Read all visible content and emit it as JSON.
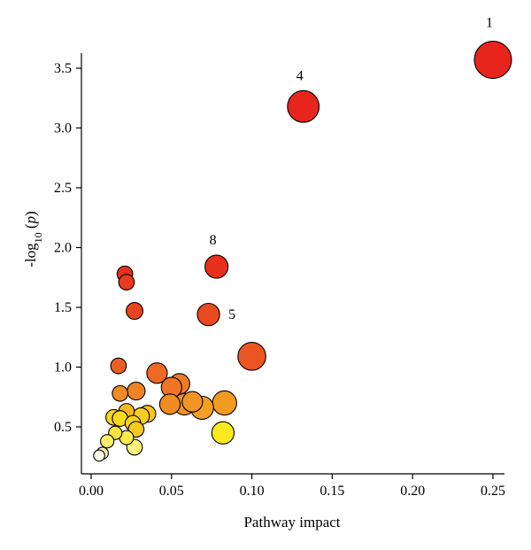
{
  "chart_data": {
    "type": "scatter",
    "xlabel": "Pathway impact",
    "ylabel_main": "-log",
    "ylabel_sub": "10",
    "ylabel_var": "p",
    "xlim": [
      0,
      0.25
    ],
    "ylim": [
      0.2,
      3.65
    ],
    "xticks": [
      "0.00",
      "0.05",
      "0.10",
      "0.15",
      "0.20",
      "0.25"
    ],
    "yticks": [
      "0.5",
      "1.0",
      "1.5",
      "2.0",
      "2.5",
      "3.0",
      "3.5"
    ],
    "grid": false,
    "points": [
      {
        "x": 0.25,
        "y": 3.57,
        "size": 1.0,
        "color": "#e8251d",
        "label": "1"
      },
      {
        "x": 0.132,
        "y": 3.18,
        "size": 0.85,
        "color": "#e8251d",
        "label": "4"
      },
      {
        "x": 0.078,
        "y": 1.84,
        "size": 0.62,
        "color": "#e8301d",
        "label": "8"
      },
      {
        "x": 0.073,
        "y": 1.44,
        "size": 0.6,
        "color": "#ea4a20",
        "label": "5"
      },
      {
        "x": 0.021,
        "y": 1.78,
        "size": 0.42,
        "color": "#e8301d"
      },
      {
        "x": 0.022,
        "y": 1.71,
        "size": 0.42,
        "color": "#e83a1e"
      },
      {
        "x": 0.027,
        "y": 1.47,
        "size": 0.45,
        "color": "#e84420"
      },
      {
        "x": 0.1,
        "y": 1.09,
        "size": 0.75,
        "color": "#ea5522"
      },
      {
        "x": 0.017,
        "y": 1.01,
        "size": 0.42,
        "color": "#ec5f22"
      },
      {
        "x": 0.041,
        "y": 0.95,
        "size": 0.55,
        "color": "#ee6a24"
      },
      {
        "x": 0.055,
        "y": 0.86,
        "size": 0.55,
        "color": "#ef7a24"
      },
      {
        "x": 0.05,
        "y": 0.83,
        "size": 0.55,
        "color": "#ef7524"
      },
      {
        "x": 0.028,
        "y": 0.8,
        "size": 0.48,
        "color": "#f08424"
      },
      {
        "x": 0.018,
        "y": 0.78,
        "size": 0.42,
        "color": "#f08a24"
      },
      {
        "x": 0.083,
        "y": 0.7,
        "size": 0.65,
        "color": "#f39a22"
      },
      {
        "x": 0.063,
        "y": 0.71,
        "size": 0.55,
        "color": "#f29522"
      },
      {
        "x": 0.058,
        "y": 0.69,
        "size": 0.58,
        "color": "#f29022"
      },
      {
        "x": 0.049,
        "y": 0.69,
        "size": 0.55,
        "color": "#f28c22"
      },
      {
        "x": 0.069,
        "y": 0.66,
        "size": 0.62,
        "color": "#f3a022"
      },
      {
        "x": 0.022,
        "y": 0.63,
        "size": 0.42,
        "color": "#f6b821"
      },
      {
        "x": 0.035,
        "y": 0.61,
        "size": 0.45,
        "color": "#f7c420"
      },
      {
        "x": 0.031,
        "y": 0.59,
        "size": 0.45,
        "color": "#f8cc20"
      },
      {
        "x": 0.014,
        "y": 0.58,
        "size": 0.42,
        "color": "#f9d520"
      },
      {
        "x": 0.018,
        "y": 0.57,
        "size": 0.42,
        "color": "#fad820"
      },
      {
        "x": 0.026,
        "y": 0.53,
        "size": 0.42,
        "color": "#f9d11f"
      },
      {
        "x": 0.028,
        "y": 0.48,
        "size": 0.42,
        "color": "#f7c81f"
      },
      {
        "x": 0.082,
        "y": 0.45,
        "size": 0.6,
        "color": "#faea1e"
      },
      {
        "x": 0.015,
        "y": 0.45,
        "size": 0.36,
        "color": "#fbe33c"
      },
      {
        "x": 0.022,
        "y": 0.41,
        "size": 0.38,
        "color": "#fbeb4a"
      },
      {
        "x": 0.01,
        "y": 0.38,
        "size": 0.36,
        "color": "#fcef6a"
      },
      {
        "x": 0.027,
        "y": 0.33,
        "size": 0.42,
        "color": "#fcf07a"
      },
      {
        "x": 0.007,
        "y": 0.28,
        "size": 0.32,
        "color": "#fdf6b8"
      },
      {
        "x": 0.005,
        "y": 0.26,
        "size": 0.3,
        "color": "#fefaea"
      }
    ]
  }
}
